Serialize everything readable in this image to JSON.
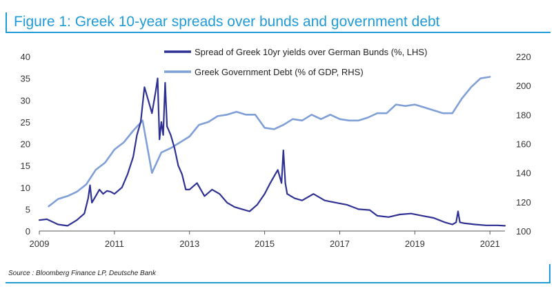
{
  "title": "Figure 1: Greek 10-year spreads over bunds and government debt",
  "source": "Source : Bloomberg Finance LP, Deutsche Bank",
  "colors": {
    "accent": "#1f9bd7",
    "spread": "#2e3192",
    "debt": "#7f9fd6"
  },
  "chart_data": {
    "type": "line",
    "title": "Figure 1: Greek 10-year spreads over bunds and government debt",
    "xlabel": "",
    "ylabel_left": "",
    "ylabel_right": "",
    "xlim": [
      2009,
      2021.4
    ],
    "ylim_left": [
      0,
      40
    ],
    "ylim_right": [
      100,
      220
    ],
    "x_ticks": [
      "2009",
      "2011",
      "2013",
      "2015",
      "2017",
      "2019",
      "2021"
    ],
    "y_left_ticks": [
      "0",
      "5",
      "10",
      "15",
      "20",
      "25",
      "30",
      "35",
      "40"
    ],
    "y_right_ticks": [
      "100",
      "120",
      "140",
      "160",
      "180",
      "200",
      "220"
    ],
    "grid": false,
    "legend_position": "top",
    "series": [
      {
        "name": "Spread of Greek 10yr yields over German Bunds (%, LHS)",
        "axis": "left",
        "x": [
          2009.0,
          2009.2,
          2009.5,
          2009.75,
          2010.0,
          2010.2,
          2010.3,
          2010.35,
          2010.4,
          2010.5,
          2010.6,
          2010.7,
          2010.8,
          2010.9,
          2011.0,
          2011.2,
          2011.35,
          2011.5,
          2011.6,
          2011.7,
          2011.8,
          2011.9,
          2012.0,
          2012.1,
          2012.15,
          2012.2,
          2012.25,
          2012.3,
          2012.35,
          2012.4,
          2012.5,
          2012.6,
          2012.7,
          2012.8,
          2012.9,
          2013.0,
          2013.2,
          2013.4,
          2013.6,
          2013.8,
          2014.0,
          2014.2,
          2014.4,
          2014.6,
          2014.8,
          2015.0,
          2015.15,
          2015.25,
          2015.35,
          2015.45,
          2015.5,
          2015.55,
          2015.6,
          2015.7,
          2015.8,
          2016.0,
          2016.3,
          2016.6,
          2016.9,
          2017.2,
          2017.5,
          2017.8,
          2018.0,
          2018.3,
          2018.6,
          2018.9,
          2019.2,
          2019.5,
          2019.8,
          2020.0,
          2020.1,
          2020.15,
          2020.2,
          2020.3,
          2020.6,
          2020.9,
          2021.2,
          2021.4
        ],
        "values": [
          2.5,
          2.7,
          1.5,
          1.2,
          2.5,
          4.0,
          7.5,
          10.5,
          6.5,
          8.0,
          9.5,
          8.5,
          9.2,
          9.0,
          8.5,
          10.0,
          13.0,
          17.0,
          22.0,
          25.0,
          33.0,
          30.0,
          27.0,
          32.0,
          35.0,
          21.0,
          25.0,
          22.0,
          34.0,
          24.0,
          22.0,
          19.0,
          15.0,
          13.0,
          9.5,
          9.5,
          11.0,
          8.0,
          9.5,
          8.5,
          6.5,
          5.5,
          5.0,
          4.5,
          6.0,
          8.5,
          11.0,
          12.5,
          14.0,
          11.0,
          18.5,
          11.0,
          8.5,
          8.0,
          7.5,
          7.0,
          8.5,
          7.0,
          6.5,
          6.0,
          5.0,
          4.8,
          3.5,
          3.2,
          3.8,
          4.0,
          3.5,
          3.0,
          2.0,
          1.5,
          2.0,
          4.5,
          2.0,
          1.8,
          1.5,
          1.3,
          1.3,
          1.2
        ]
      },
      {
        "name": "Greek Government Debt (% of GDP, RHS)",
        "axis": "right",
        "x": [
          2009.25,
          2009.5,
          2009.75,
          2010.0,
          2010.25,
          2010.5,
          2010.75,
          2011.0,
          2011.25,
          2011.5,
          2011.75,
          2012.0,
          2012.25,
          2012.5,
          2012.75,
          2013.0,
          2013.25,
          2013.5,
          2013.75,
          2014.0,
          2014.25,
          2014.5,
          2014.75,
          2015.0,
          2015.25,
          2015.5,
          2015.75,
          2016.0,
          2016.25,
          2016.5,
          2016.75,
          2017.0,
          2017.25,
          2017.5,
          2017.75,
          2018.0,
          2018.25,
          2018.5,
          2018.75,
          2019.0,
          2019.25,
          2019.5,
          2019.75,
          2020.0,
          2020.25,
          2020.5,
          2020.75,
          2021.0
        ],
        "values": [
          117,
          122,
          124,
          127,
          132,
          142,
          147,
          156,
          161,
          169,
          176,
          140,
          154,
          157,
          161,
          165,
          173,
          175,
          179,
          180,
          182,
          180,
          180,
          171,
          170,
          173,
          177,
          176,
          180,
          177,
          180,
          177,
          176,
          176,
          178,
          181,
          181,
          187,
          186,
          187,
          185,
          183,
          181,
          181,
          191,
          199,
          205,
          206
        ]
      }
    ]
  }
}
